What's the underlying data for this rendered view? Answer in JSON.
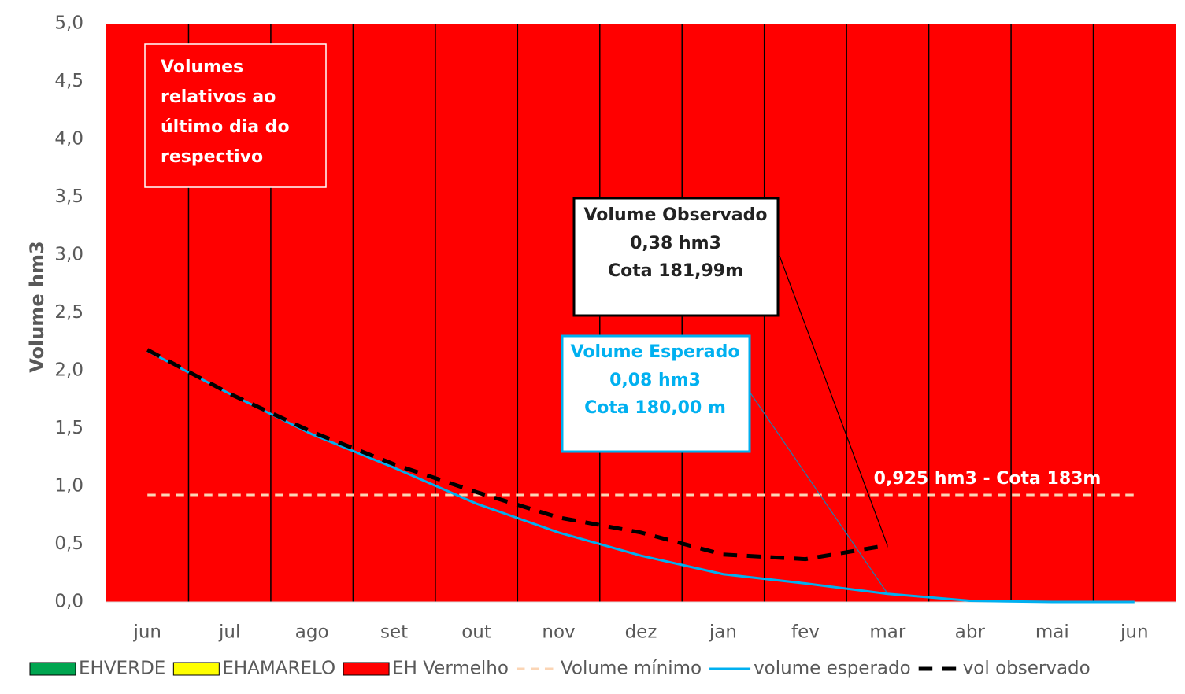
{
  "chart_data": {
    "type": "bar",
    "y_label": "Volume hm3",
    "categories": [
      "jun",
      "jul",
      "ago",
      "set",
      "out",
      "nov",
      "dez",
      "jan",
      "fev",
      "mar",
      "abr",
      "mai",
      "jun"
    ],
    "ylim": [
      0,
      5
    ],
    "yticks": [
      {
        "value": 0,
        "label": "0,0"
      },
      {
        "value": 0.5,
        "label": "0,5"
      },
      {
        "value": 1,
        "label": "1,0"
      },
      {
        "value": 1.5,
        "label": "1,5"
      },
      {
        "value": 2,
        "label": "2,0"
      },
      {
        "value": 2.5,
        "label": "2,5"
      },
      {
        "value": 3,
        "label": "3,0"
      },
      {
        "value": 3.5,
        "label": "3,5"
      },
      {
        "value": 4,
        "label": "4,0"
      },
      {
        "value": 4.5,
        "label": "4,5"
      },
      {
        "value": 5,
        "label": "5,0"
      }
    ],
    "series": [
      {
        "name": "EHVERDE",
        "type": "bar",
        "color": "#00a550",
        "values": [
          0,
          0,
          0,
          0,
          0,
          0,
          0,
          0,
          0,
          0,
          0,
          0,
          0
        ]
      },
      {
        "name": "EHAMARELO",
        "type": "bar",
        "color": "#ffff00",
        "values": [
          0,
          0,
          0,
          0,
          0,
          0,
          0,
          0,
          0,
          0,
          0,
          0,
          0
        ]
      },
      {
        "name": "EH Vermelho",
        "type": "bar",
        "color": "#ff0000",
        "values": [
          5,
          5,
          5,
          5,
          5,
          5,
          5,
          5,
          5,
          5,
          5,
          5,
          5
        ]
      },
      {
        "name": "Volume mínimo",
        "type": "line",
        "dashed": true,
        "width": 3,
        "color": "#fbd5b5",
        "values": [
          0.925,
          0.925,
          0.925,
          0.925,
          0.925,
          0.925,
          0.925,
          0.925,
          0.925,
          0.925,
          0.925,
          0.925,
          0.925
        ]
      },
      {
        "name": "volume esperado",
        "type": "line",
        "dashed": false,
        "width": 3,
        "color": "#00b0f0",
        "values": [
          2.17,
          1.8,
          1.45,
          1.16,
          0.85,
          0.6,
          0.4,
          0.24,
          0.16,
          0.07,
          0.01,
          0,
          0
        ]
      },
      {
        "name": "vol observado",
        "type": "line",
        "dashed": true,
        "width": 5,
        "color": "#000000",
        "values": [
          2.18,
          1.8,
          1.47,
          1.19,
          0.95,
          0.73,
          0.6,
          0.41,
          0.37,
          0.49,
          null,
          null,
          null
        ]
      }
    ],
    "annotations": [
      {
        "lines": [
          "Volumes",
          "relativos ao",
          "último dia do",
          "respectivo"
        ]
      },
      {
        "lines": [
          "Volume Observado",
          "0,38 hm3",
          "Cota 181,99m"
        ]
      },
      {
        "lines": [
          "Volume Esperado",
          "0,08 hm3",
          "Cota 180,00 m"
        ]
      },
      {
        "lines": [
          "0,925 hm3 - Cota 183m"
        ]
      }
    ]
  }
}
